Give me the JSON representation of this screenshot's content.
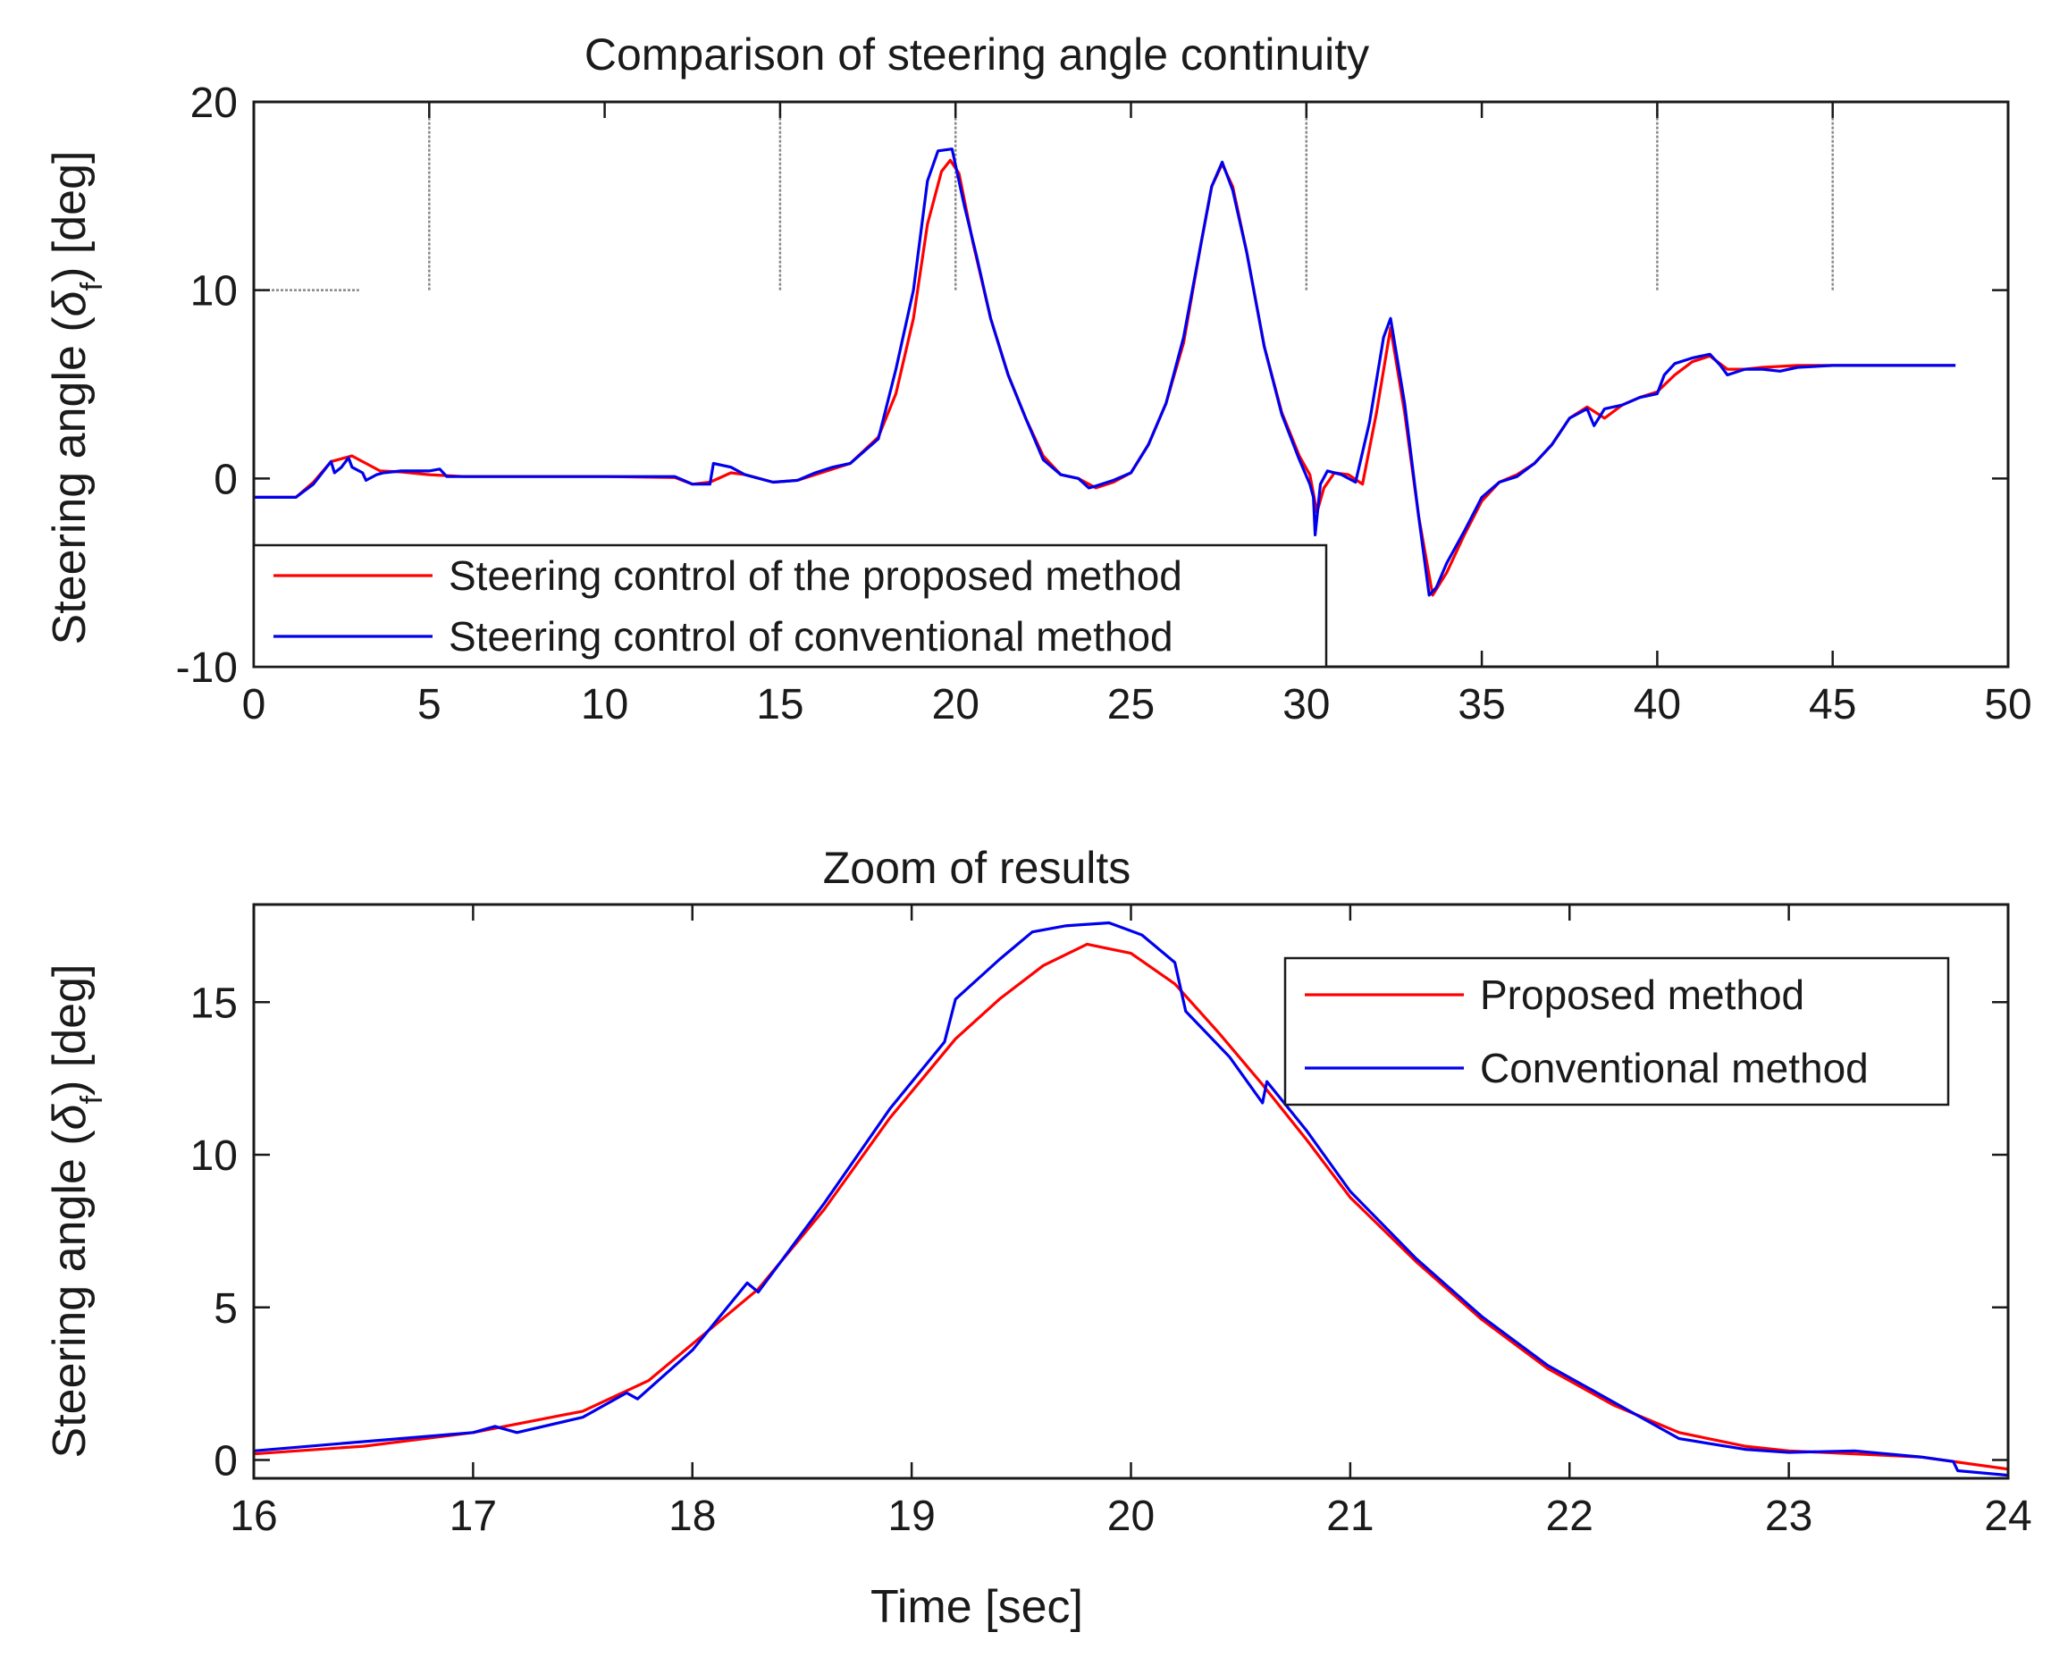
{
  "chart_data": [
    {
      "type": "line",
      "title": "Comparison of steering angle continuity",
      "xlabel": "",
      "ylabel": "Steering angle (δ_f) [deg]",
      "ylabel_parts": {
        "pre": "Steering angle (",
        "sym": "δ",
        "sub": "f",
        "post": ") [deg]"
      },
      "xlim": [
        0,
        50
      ],
      "ylim": [
        -10,
        20
      ],
      "xticks": [
        0,
        5,
        10,
        15,
        20,
        25,
        30,
        35,
        40,
        45,
        50
      ],
      "yticks": [
        -10,
        0,
        10,
        20
      ],
      "grid": false,
      "legend_location": "bottom-left",
      "series": [
        {
          "name": "Steering control of the proposed method",
          "color": "#ff0000",
          "points": [
            [
              0,
              -1
            ],
            [
              1.2,
              -1
            ],
            [
              1.7,
              -0.2
            ],
            [
              2.2,
              0.9
            ],
            [
              2.8,
              1.2
            ],
            [
              3.2,
              0.8
            ],
            [
              3.6,
              0.4
            ],
            [
              4.2,
              0.35
            ],
            [
              5,
              0.2
            ],
            [
              6,
              0.1
            ],
            [
              8,
              0.1
            ],
            [
              10,
              0.1
            ],
            [
              12,
              0.05
            ],
            [
              12.5,
              -0.3
            ],
            [
              13,
              -0.2
            ],
            [
              13.6,
              0.3
            ],
            [
              14,
              0.2
            ],
            [
              14.8,
              -0.2
            ],
            [
              15.5,
              -0.1
            ],
            [
              16,
              0.2
            ],
            [
              17,
              0.8
            ],
            [
              17.8,
              2.2
            ],
            [
              18.3,
              4.5
            ],
            [
              18.8,
              8.5
            ],
            [
              19.2,
              13.5
            ],
            [
              19.6,
              16.3
            ],
            [
              19.85,
              16.9
            ],
            [
              20.1,
              16.2
            ],
            [
              20.5,
              12.5
            ],
            [
              21,
              8.5
            ],
            [
              21.5,
              5.5
            ],
            [
              22,
              3.2
            ],
            [
              22.5,
              1.2
            ],
            [
              23,
              0.2
            ],
            [
              23.5,
              0
            ],
            [
              24,
              -0.5
            ],
            [
              24.5,
              -0.2
            ],
            [
              25,
              0.3
            ],
            [
              25.5,
              1.8
            ],
            [
              26,
              4
            ],
            [
              26.5,
              7.2
            ],
            [
              27,
              12.5
            ],
            [
              27.3,
              15.5
            ],
            [
              27.6,
              16.7
            ],
            [
              27.9,
              15.5
            ],
            [
              28.3,
              12
            ],
            [
              28.8,
              7
            ],
            [
              29.3,
              3.5
            ],
            [
              29.8,
              1.2
            ],
            [
              30.1,
              0.2
            ],
            [
              30.3,
              -1.8
            ],
            [
              30.5,
              -0.5
            ],
            [
              30.8,
              0.3
            ],
            [
              31.2,
              0.2
            ],
            [
              31.6,
              -0.3
            ],
            [
              32,
              3.5
            ],
            [
              32.4,
              8
            ],
            [
              32.8,
              3.5
            ],
            [
              33.2,
              -2
            ],
            [
              33.6,
              -6.2
            ],
            [
              34,
              -5
            ],
            [
              34.5,
              -3
            ],
            [
              35,
              -1.2
            ],
            [
              35.5,
              -0.2
            ],
            [
              36,
              0.2
            ],
            [
              36.5,
              0.8
            ],
            [
              37,
              1.8
            ],
            [
              37.5,
              3.2
            ],
            [
              38,
              3.8
            ],
            [
              38.5,
              3.2
            ],
            [
              39,
              3.9
            ],
            [
              39.5,
              4.3
            ],
            [
              40,
              4.6
            ],
            [
              40.5,
              5.5
            ],
            [
              41,
              6.2
            ],
            [
              41.5,
              6.5
            ],
            [
              42,
              5.8
            ],
            [
              42.5,
              5.8
            ],
            [
              43,
              5.9
            ],
            [
              44,
              6
            ],
            [
              45,
              6
            ],
            [
              48.5,
              6
            ]
          ]
        },
        {
          "name": "Steering control of conventional method",
          "color": "#0000ee",
          "points": [
            [
              0,
              -1
            ],
            [
              1.2,
              -1
            ],
            [
              1.7,
              -0.3
            ],
            [
              2.2,
              0.9
            ],
            [
              2.3,
              0.3
            ],
            [
              2.5,
              0.6
            ],
            [
              2.7,
              1.1
            ],
            [
              2.8,
              0.6
            ],
            [
              3.1,
              0.3
            ],
            [
              3.2,
              -0.1
            ],
            [
              3.5,
              0.2
            ],
            [
              3.7,
              0.3
            ],
            [
              4.2,
              0.4
            ],
            [
              5,
              0.4
            ],
            [
              5.3,
              0.5
            ],
            [
              5.5,
              0.1
            ],
            [
              6,
              0.1
            ],
            [
              8,
              0.1
            ],
            [
              10,
              0.1
            ],
            [
              12,
              0.1
            ],
            [
              12.5,
              -0.3
            ],
            [
              13,
              -0.3
            ],
            [
              13.1,
              0.8
            ],
            [
              13.6,
              0.6
            ],
            [
              14,
              0.2
            ],
            [
              14.8,
              -0.2
            ],
            [
              15.5,
              -0.1
            ],
            [
              16,
              0.3
            ],
            [
              16.5,
              0.6
            ],
            [
              17,
              0.8
            ],
            [
              17.8,
              2.1
            ],
            [
              18.3,
              5.8
            ],
            [
              18.8,
              10
            ],
            [
              19.2,
              15.8
            ],
            [
              19.5,
              17.4
            ],
            [
              19.9,
              17.5
            ],
            [
              20.25,
              14.5
            ],
            [
              20.6,
              11.8
            ],
            [
              21,
              8.5
            ],
            [
              21.5,
              5.5
            ],
            [
              22,
              3.2
            ],
            [
              22.5,
              1
            ],
            [
              23,
              0.2
            ],
            [
              23.5,
              0
            ],
            [
              23.8,
              -0.5
            ],
            [
              24,
              -0.4
            ],
            [
              24.5,
              -0.1
            ],
            [
              25,
              0.3
            ],
            [
              25.5,
              1.8
            ],
            [
              26,
              4
            ],
            [
              26.5,
              7.5
            ],
            [
              27,
              12.5
            ],
            [
              27.3,
              15.5
            ],
            [
              27.6,
              16.8
            ],
            [
              27.9,
              15.3
            ],
            [
              28.3,
              12
            ],
            [
              28.8,
              7
            ],
            [
              29.3,
              3.4
            ],
            [
              29.8,
              1
            ],
            [
              30.1,
              -0.3
            ],
            [
              30.2,
              -1
            ],
            [
              30.25,
              -3
            ],
            [
              30.4,
              -0.3
            ],
            [
              30.6,
              0.4
            ],
            [
              31,
              0.2
            ],
            [
              31.4,
              -0.2
            ],
            [
              31.8,
              3
            ],
            [
              32.2,
              7.5
            ],
            [
              32.4,
              8.5
            ],
            [
              32.8,
              4
            ],
            [
              33.2,
              -2
            ],
            [
              33.5,
              -6.2
            ],
            [
              33.7,
              -5.8
            ],
            [
              34,
              -4.5
            ],
            [
              34.5,
              -2.8
            ],
            [
              35,
              -1
            ],
            [
              35.5,
              -0.2
            ],
            [
              36,
              0.1
            ],
            [
              36.5,
              0.8
            ],
            [
              37,
              1.8
            ],
            [
              37.5,
              3.2
            ],
            [
              38,
              3.7
            ],
            [
              38.2,
              2.8
            ],
            [
              38.5,
              3.7
            ],
            [
              39,
              3.9
            ],
            [
              39.5,
              4.3
            ],
            [
              40,
              4.5
            ],
            [
              40.2,
              5.5
            ],
            [
              40.5,
              6.1
            ],
            [
              41,
              6.4
            ],
            [
              41.5,
              6.6
            ],
            [
              41.8,
              6
            ],
            [
              42,
              5.5
            ],
            [
              42.5,
              5.8
            ],
            [
              43,
              5.8
            ],
            [
              43.5,
              5.7
            ],
            [
              44,
              5.9
            ],
            [
              45,
              6
            ],
            [
              48.5,
              6
            ]
          ]
        }
      ],
      "scatter_marks": {
        "name": "grey vertical marks",
        "color": "#888888",
        "x": [
          5,
          15,
          20,
          30,
          40,
          45
        ],
        "y_from": 10,
        "y_to": 20,
        "flat_segment": {
          "x": [
            0,
            3
          ],
          "y": 10
        }
      }
    },
    {
      "type": "line",
      "title": "Zoom of results",
      "xlabel": "Time [sec]",
      "ylabel": "Steering angle (δ_f) [deg]",
      "ylabel_parts": {
        "pre": "Steering angle (",
        "sym": "δ",
        "sub": "f",
        "post": ") [deg]"
      },
      "xlim": [
        16,
        24
      ],
      "ylim": [
        -0.6,
        18.2
      ],
      "xticks": [
        16,
        17,
        18,
        19,
        20,
        21,
        22,
        23,
        24
      ],
      "yticks": [
        0,
        5,
        10,
        15
      ],
      "grid": false,
      "legend_location": "top-right",
      "series": [
        {
          "name": "Proposed method",
          "color": "#ff0000",
          "points": [
            [
              16,
              0.2
            ],
            [
              16.5,
              0.45
            ],
            [
              17,
              0.9
            ],
            [
              17.5,
              1.6
            ],
            [
              17.8,
              2.6
            ],
            [
              18,
              3.8
            ],
            [
              18.3,
              5.6
            ],
            [
              18.6,
              8.2
            ],
            [
              18.9,
              11.2
            ],
            [
              19.2,
              13.8
            ],
            [
              19.4,
              15.1
            ],
            [
              19.6,
              16.2
            ],
            [
              19.8,
              16.9
            ],
            [
              20,
              16.6
            ],
            [
              20.2,
              15.6
            ],
            [
              20.4,
              14
            ],
            [
              20.6,
              12.3
            ],
            [
              20.8,
              10.5
            ],
            [
              21,
              8.6
            ],
            [
              21.3,
              6.5
            ],
            [
              21.6,
              4.6
            ],
            [
              21.9,
              3
            ],
            [
              22.2,
              1.8
            ],
            [
              22.5,
              0.9
            ],
            [
              22.8,
              0.45
            ],
            [
              23,
              0.3
            ],
            [
              23.3,
              0.2
            ],
            [
              23.6,
              0.1
            ],
            [
              24,
              -0.3
            ]
          ]
        },
        {
          "name": "Conventional method",
          "color": "#0000ee",
          "points": [
            [
              16,
              0.3
            ],
            [
              16.5,
              0.6
            ],
            [
              17,
              0.9
            ],
            [
              17.1,
              1.1
            ],
            [
              17.2,
              0.9
            ],
            [
              17.5,
              1.4
            ],
            [
              17.7,
              2.2
            ],
            [
              17.75,
              2.0
            ],
            [
              18,
              3.6
            ],
            [
              18.25,
              5.8
            ],
            [
              18.3,
              5.5
            ],
            [
              18.6,
              8.4
            ],
            [
              18.9,
              11.5
            ],
            [
              19.15,
              13.7
            ],
            [
              19.2,
              15.1
            ],
            [
              19.4,
              16.4
            ],
            [
              19.55,
              17.3
            ],
            [
              19.7,
              17.5
            ],
            [
              19.9,
              17.6
            ],
            [
              20.05,
              17.2
            ],
            [
              20.2,
              16.3
            ],
            [
              20.25,
              14.7
            ],
            [
              20.45,
              13.2
            ],
            [
              20.6,
              11.7
            ],
            [
              20.62,
              12.4
            ],
            [
              20.8,
              10.8
            ],
            [
              21,
              8.8
            ],
            [
              21.3,
              6.6
            ],
            [
              21.6,
              4.7
            ],
            [
              21.9,
              3.1
            ],
            [
              22.2,
              1.9
            ],
            [
              22.5,
              0.7
            ],
            [
              22.8,
              0.35
            ],
            [
              23,
              0.25
            ],
            [
              23.3,
              0.3
            ],
            [
              23.6,
              0.1
            ],
            [
              23.75,
              -0.05
            ],
            [
              23.77,
              -0.35
            ],
            [
              24,
              -0.5
            ]
          ]
        }
      ]
    }
  ]
}
